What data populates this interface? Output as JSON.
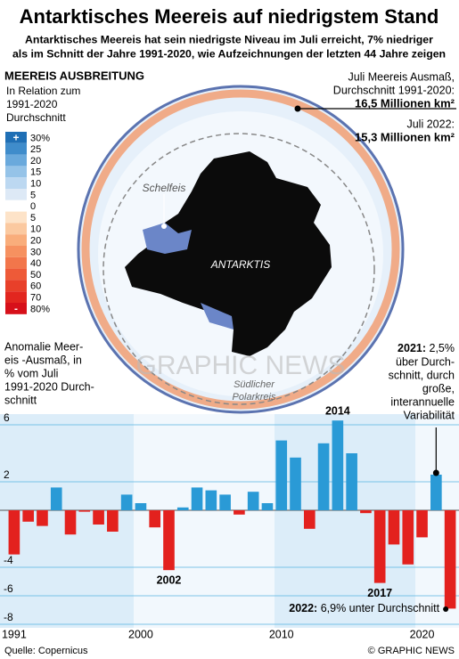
{
  "header": {
    "title": "Antarktisches Meereis auf niedrigstem Stand",
    "subtitle": [
      "Antarktisches Meereis hat sein niedrigste Niveau im Juli erreicht, 7% niedriger",
      "als im Schnitt der Jahre 1991-2020, wie Aufzeichnungen der letzten 44 Jahre zeigen"
    ]
  },
  "map": {
    "legend_title": "MEEREIS AUSBREITUNG",
    "legend_subtitle": [
      "In Relation zum",
      "1991-2020",
      "Durchschnitt"
    ],
    "scale": {
      "plus": "+",
      "minus": "-",
      "labels": [
        "30%",
        "25",
        "20",
        "15",
        "10",
        "5",
        "0",
        "5",
        "10",
        "20",
        "30",
        "40",
        "50",
        "60",
        "70",
        "80%"
      ],
      "colors": [
        "#1f6fb5",
        "#3f8ccb",
        "#6aa9dc",
        "#95c3e8",
        "#bcd8f1",
        "#dde9f6",
        "#ffffff",
        "#fde3c8",
        "#fbc9a0",
        "#f9ad7b",
        "#f69160",
        "#f2764b",
        "#ee5a38",
        "#e8402a",
        "#e2261f",
        "#d7101a"
      ]
    },
    "average_label": [
      "Juli Meereis Ausmaß,",
      "Durchschnitt 1991-2020:"
    ],
    "average_value": "16,5 Millionen km²",
    "current_label": "Juli 2022:",
    "current_value": "15,3 Millionen km²",
    "shelf_label": "Schelfeis",
    "continent_label": "ANTARKTIS",
    "circle_label": [
      "Südlicher",
      "Polarkreis"
    ],
    "watermark": "GRAPHIC NEWS"
  },
  "chart_data": {
    "type": "bar",
    "y_label": [
      "Anomalie Meer-",
      "eis -Ausmaß, in",
      "% vom Juli",
      "1991-2020 Durch-",
      "schnitt"
    ],
    "x": [
      1991,
      1992,
      1993,
      1994,
      1995,
      1996,
      1997,
      1998,
      1999,
      2000,
      2001,
      2002,
      2003,
      2004,
      2005,
      2006,
      2007,
      2008,
      2009,
      2010,
      2011,
      2012,
      2013,
      2014,
      2015,
      2016,
      2017,
      2018,
      2019,
      2020,
      2021,
      2022
    ],
    "values": [
      -3.1,
      -0.8,
      -1.1,
      1.6,
      -1.7,
      -0.1,
      -1.0,
      -1.5,
      1.1,
      0.5,
      -1.2,
      -4.2,
      0.2,
      1.6,
      1.4,
      1.1,
      -0.3,
      1.3,
      0.5,
      4.9,
      3.7,
      -1.3,
      4.7,
      6.3,
      4.0,
      -0.2,
      -5.1,
      -2.4,
      -3.8,
      -1.9,
      2.5,
      -6.9
    ],
    "positive_color": "#2a9ad6",
    "negative_color": "#e3211e",
    "xlim": [
      1990.5,
      2022.5
    ],
    "ylim": [
      -8,
      6
    ],
    "yticks": [
      6,
      2,
      -4,
      -6,
      -8
    ],
    "xticks": [
      1991,
      2000,
      2010,
      2020
    ],
    "grid": true,
    "annotations": [
      {
        "x": 2014,
        "text": "2014"
      },
      {
        "x": 2002,
        "text": "2002"
      },
      {
        "x": 2017,
        "text": "2017"
      }
    ],
    "note_2021": {
      "x": 2021,
      "bold": "2021:",
      "lines": [
        " 2,5%",
        "über Durch-",
        "schnitt, durch",
        "große,",
        "interannuelle",
        "Variabilität"
      ]
    },
    "note_2022": {
      "x": 2022,
      "bold": "2022:",
      "text": " 6,9% unter Durchschnitt"
    }
  },
  "footer": {
    "source": "Quelle: Copernicus",
    "credit": "© GRAPHIC NEWS"
  }
}
